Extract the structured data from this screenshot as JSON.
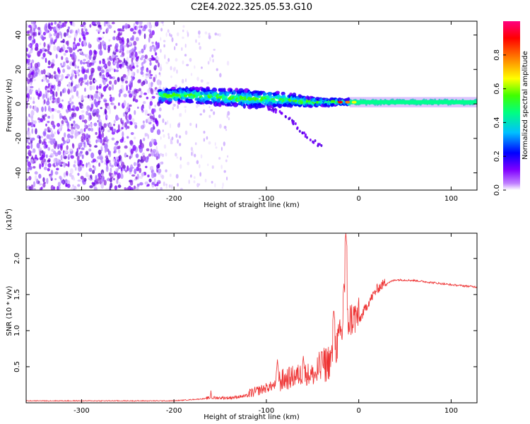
{
  "title": "C2E4.2022.325.05.53.G10",
  "chart_data": [
    {
      "type": "heatmap",
      "xlabel": "Height of straight line (km)",
      "ylabel": "Frequency (Hz)",
      "xlim": [
        -360,
        128
      ],
      "ylim": [
        -50,
        48
      ],
      "xticks": [
        -300,
        -200,
        -100,
        0,
        100
      ],
      "yticks": [
        -40,
        -20,
        0,
        20,
        40
      ],
      "colorbar": {
        "label": "Normalized spectral amplitude",
        "range": [
          0,
          1
        ],
        "ticks": [
          "0.0",
          "0.2",
          "0.4",
          "0.6",
          "0.8"
        ],
        "colors": [
          "#ffffff",
          "#c080ff",
          "#8000ff",
          "#0000ff",
          "#00c0ff",
          "#00ff80",
          "#40ff00",
          "#ffff00",
          "#ff8000",
          "#ff0000",
          "#ff0080"
        ]
      },
      "features": {
        "noise_region_x": [
          -360,
          -215
        ],
        "noise_density_x": [
          -215,
          -140
        ],
        "band_center_hz": [
          [
            -215,
            5
          ],
          [
            -180,
            5
          ],
          [
            -150,
            4
          ],
          [
            -120,
            3
          ],
          [
            -100,
            3
          ],
          [
            -70,
            2
          ],
          [
            -50,
            1
          ],
          [
            -20,
            1
          ],
          [
            0,
            1
          ],
          [
            128,
            1
          ]
        ],
        "band_width_hz": [
          [
            -215,
            8
          ],
          [
            -150,
            9
          ],
          [
            -110,
            10
          ],
          [
            -70,
            7
          ],
          [
            -40,
            4
          ],
          [
            -10,
            3
          ],
          [
            128,
            3
          ]
        ],
        "falling_tail": [
          [
            -100,
            -2
          ],
          [
            -80,
            -6
          ],
          [
            -60,
            -17
          ],
          [
            -40,
            -25
          ]
        ]
      }
    },
    {
      "type": "line",
      "xlabel": "Height of straight line (km)",
      "ylabel": "SNR (10 * v/v)",
      "y_multiplier": "(x10",
      "y_multiplier_exp": "4",
      "y_multiplier_close": ")",
      "xlim": [
        -360,
        128
      ],
      "ylim": [
        0,
        23500
      ],
      "xticks": [
        -300,
        -200,
        -100,
        0,
        100
      ],
      "yticks": [
        5000,
        10000,
        15000,
        20000
      ],
      "ytick_labels": [
        "0.5",
        "1.0",
        "1.5",
        "2.0"
      ],
      "series": [
        {
          "color": "#ee3333",
          "baseline": [
            [
              -360,
              250
            ],
            [
              -200,
              250
            ],
            [
              -160,
              600
            ],
            [
              -140,
              600
            ],
            [
              -120,
              900
            ],
            [
              -100,
              1800
            ],
            [
              -80,
              2600
            ],
            [
              -60,
              3400
            ],
            [
              -45,
              3200
            ],
            [
              -30,
              5000
            ],
            [
              -20,
              8200
            ],
            [
              -10,
              10500
            ],
            [
              0,
              11000
            ],
            [
              10,
              13500
            ],
            [
              20,
              15500
            ],
            [
              30,
              16500
            ],
            [
              40,
              17000
            ],
            [
              60,
              16900
            ],
            [
              80,
              16600
            ],
            [
              100,
              16300
            ],
            [
              128,
              16000
            ]
          ],
          "spikes": [
            [
              -160,
              1700
            ],
            [
              -88,
              6000
            ],
            [
              -60,
              6500
            ],
            [
              -40,
              7000
            ],
            [
              -27,
              13000
            ],
            [
              -16,
              16500
            ],
            [
              -14,
              23500
            ]
          ]
        }
      ]
    }
  ]
}
